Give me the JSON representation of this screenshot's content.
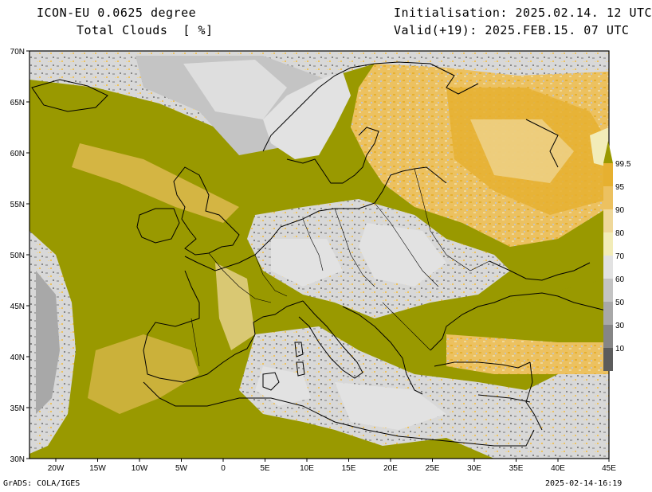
{
  "header": {
    "model": "ICON-EU 0.0625 degree",
    "field": "Total Clouds  [ %]",
    "init": "Initialisation: 2025.02.14. 12 UTC",
    "valid": "Valid(+19): 2025.FEB.15. 07 UTC"
  },
  "axes": {
    "lat_labels": [
      "70N",
      "65N",
      "60N",
      "55N",
      "50N",
      "45N",
      "40N",
      "35N",
      "30N"
    ],
    "lon_labels": [
      "20W",
      "15W",
      "10W",
      "5W",
      "0",
      "5E",
      "10E",
      "15E",
      "20E",
      "25E",
      "30E",
      "35E",
      "40E",
      "45E"
    ]
  },
  "colorbar": {
    "levels": [
      "99.5",
      "95",
      "90",
      "80",
      "70",
      "60",
      "50",
      "30",
      "10"
    ],
    "colors": [
      "#999900",
      "#e6b030",
      "#ecc160",
      "#efd89a",
      "#f2ecb8",
      "#e2e2e2",
      "#c4c4c4",
      "#a8a8a8",
      "#858585",
      "#5c5c5c"
    ]
  },
  "footer": {
    "left": "GrADS: COLA/IGES",
    "right": "2025-02-14-16:19"
  }
}
